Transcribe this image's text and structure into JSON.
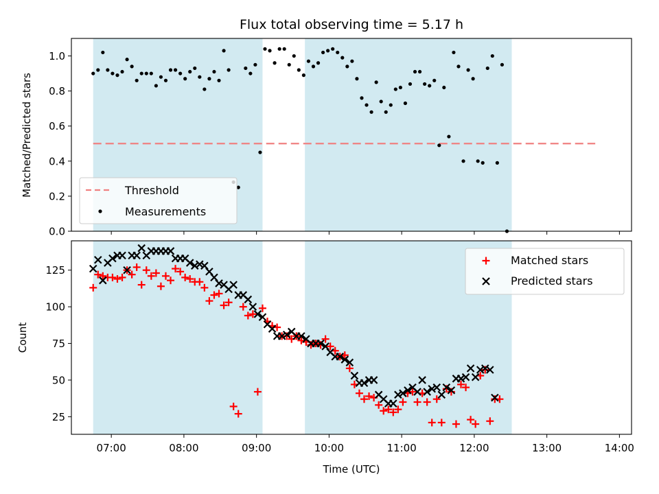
{
  "figure_title": "Flux total observing time = 5.17 h",
  "colors": {
    "threshold": "#f08080",
    "span": "#add8e6",
    "matched": "#ff0000",
    "predicted": "#000000",
    "measurement": "#000000"
  },
  "chart_data": [
    {
      "type": "scatter",
      "title": "Flux total observing time = 5.17 h",
      "xlabel": "",
      "ylabel": "Matched/Predicted stars",
      "xlim": [
        "06:27",
        "14:10"
      ],
      "ylim": [
        0,
        1.1
      ],
      "yticks": [
        "0.0",
        "0.2",
        "0.4",
        "0.6",
        "0.8",
        "1.0"
      ],
      "legend_position": "lower-left",
      "shaded_spans": [
        [
          "06:45",
          "09:05"
        ],
        [
          "09:40",
          "12:31"
        ]
      ],
      "threshold": {
        "label": "Threshold",
        "value": 0.5,
        "x_start": "06:45",
        "x_end": "13:40"
      },
      "series": [
        {
          "name": "Measurements",
          "points": [
            [
              "06:45",
              0.9
            ],
            [
              "06:49",
              0.92
            ],
            [
              "06:53",
              1.02
            ],
            [
              "06:57",
              0.92
            ],
            [
              "07:01",
              0.9
            ],
            [
              "07:05",
              0.89
            ],
            [
              "07:09",
              0.91
            ],
            [
              "07:13",
              0.98
            ],
            [
              "07:17",
              0.94
            ],
            [
              "07:21",
              0.86
            ],
            [
              "07:25",
              0.9
            ],
            [
              "07:29",
              0.9
            ],
            [
              "07:33",
              0.9
            ],
            [
              "07:37",
              0.83
            ],
            [
              "07:41",
              0.88
            ],
            [
              "07:45",
              0.86
            ],
            [
              "07:49",
              0.92
            ],
            [
              "07:53",
              0.92
            ],
            [
              "07:57",
              0.9
            ],
            [
              "08:01",
              0.87
            ],
            [
              "08:05",
              0.91
            ],
            [
              "08:09",
              0.93
            ],
            [
              "08:13",
              0.88
            ],
            [
              "08:17",
              0.81
            ],
            [
              "08:21",
              0.87
            ],
            [
              "08:25",
              0.91
            ],
            [
              "08:29",
              0.86
            ],
            [
              "08:33",
              1.03
            ],
            [
              "08:37",
              0.92
            ],
            [
              "08:41",
              0.28
            ],
            [
              "08:45",
              0.25
            ],
            [
              "08:51",
              0.93
            ],
            [
              "08:55",
              0.9
            ],
            [
              "08:59",
              0.95
            ],
            [
              "09:03",
              0.45
            ],
            [
              "09:07",
              1.04
            ],
            [
              "09:11",
              1.03
            ],
            [
              "09:15",
              0.96
            ],
            [
              "09:19",
              1.04
            ],
            [
              "09:23",
              1.04
            ],
            [
              "09:27",
              0.95
            ],
            [
              "09:31",
              1.0
            ],
            [
              "09:35",
              0.92
            ],
            [
              "09:39",
              0.89
            ],
            [
              "09:43",
              0.97
            ],
            [
              "09:47",
              0.94
            ],
            [
              "09:51",
              0.96
            ],
            [
              "09:55",
              1.02
            ],
            [
              "09:59",
              1.03
            ],
            [
              "10:03",
              1.04
            ],
            [
              "10:07",
              1.02
            ],
            [
              "10:11",
              0.99
            ],
            [
              "10:15",
              0.94
            ],
            [
              "10:19",
              0.97
            ],
            [
              "10:23",
              0.87
            ],
            [
              "10:27",
              0.76
            ],
            [
              "10:31",
              0.72
            ],
            [
              "10:35",
              0.68
            ],
            [
              "10:39",
              0.85
            ],
            [
              "10:43",
              0.74
            ],
            [
              "10:47",
              0.68
            ],
            [
              "10:51",
              0.72
            ],
            [
              "10:55",
              0.81
            ],
            [
              "10:59",
              0.82
            ],
            [
              "11:03",
              0.73
            ],
            [
              "11:07",
              0.84
            ],
            [
              "11:11",
              0.91
            ],
            [
              "11:15",
              0.91
            ],
            [
              "11:19",
              0.84
            ],
            [
              "11:23",
              0.83
            ],
            [
              "11:27",
              0.86
            ],
            [
              "11:31",
              0.49
            ],
            [
              "11:35",
              0.82
            ],
            [
              "11:39",
              0.54
            ],
            [
              "11:43",
              1.02
            ],
            [
              "11:47",
              0.94
            ],
            [
              "11:51",
              0.4
            ],
            [
              "11:55",
              0.92
            ],
            [
              "11:59",
              0.87
            ],
            [
              "12:03",
              0.4
            ],
            [
              "12:07",
              0.39
            ],
            [
              "12:11",
              0.93
            ],
            [
              "12:15",
              1.0
            ],
            [
              "12:19",
              0.39
            ],
            [
              "12:23",
              0.95
            ],
            [
              "12:27",
              0.0
            ]
          ]
        }
      ]
    },
    {
      "type": "scatter",
      "xlabel": "Time (UTC)",
      "ylabel": "Count",
      "xlim": [
        "06:27",
        "14:10"
      ],
      "xticks": [
        "07:00",
        "08:00",
        "09:00",
        "10:00",
        "11:00",
        "12:00",
        "13:00",
        "14:00"
      ],
      "ylim": [
        13,
        145
      ],
      "yticks": [
        "25",
        "50",
        "75",
        "100",
        "125"
      ],
      "legend_position": "upper-right",
      "shaded_spans": [
        [
          "06:45",
          "09:05"
        ],
        [
          "09:40",
          "12:31"
        ]
      ],
      "series": [
        {
          "name": "Matched stars",
          "marker": "plus",
          "points": [
            [
              "06:45",
              113
            ],
            [
              "06:49",
              122
            ],
            [
              "06:53",
              121
            ],
            [
              "06:57",
              120
            ],
            [
              "07:01",
              120
            ],
            [
              "07:05",
              119
            ],
            [
              "07:09",
              120
            ],
            [
              "07:13",
              125
            ],
            [
              "07:17",
              122
            ],
            [
              "07:21",
              127
            ],
            [
              "07:25",
              115
            ],
            [
              "07:29",
              125
            ],
            [
              "07:33",
              121
            ],
            [
              "07:37",
              123
            ],
            [
              "07:41",
              114
            ],
            [
              "07:45",
              121
            ],
            [
              "07:49",
              118
            ],
            [
              "07:53",
              126
            ],
            [
              "07:57",
              124
            ],
            [
              "08:01",
              120
            ],
            [
              "08:05",
              119
            ],
            [
              "08:09",
              117
            ],
            [
              "08:13",
              117
            ],
            [
              "08:17",
              113
            ],
            [
              "08:21",
              104
            ],
            [
              "08:25",
              108
            ],
            [
              "08:29",
              109
            ],
            [
              "08:33",
              101
            ],
            [
              "08:37",
              103
            ],
            [
              "08:41",
              32
            ],
            [
              "08:45",
              27
            ],
            [
              "08:49",
              100
            ],
            [
              "08:53",
              94
            ],
            [
              "08:57",
              95
            ],
            [
              "09:01",
              42
            ],
            [
              "09:05",
              99
            ],
            [
              "09:09",
              90
            ],
            [
              "09:13",
              87
            ],
            [
              "09:17",
              86
            ],
            [
              "09:21",
              80
            ],
            [
              "09:25",
              80
            ],
            [
              "09:29",
              78
            ],
            [
              "09:33",
              80
            ],
            [
              "09:37",
              77
            ],
            [
              "09:41",
              76
            ],
            [
              "09:45",
              74
            ],
            [
              "09:49",
              75
            ],
            [
              "09:53",
              74
            ],
            [
              "09:57",
              78
            ],
            [
              "10:01",
              73
            ],
            [
              "10:05",
              70
            ],
            [
              "10:09",
              66
            ],
            [
              "10:13",
              67
            ],
            [
              "10:17",
              58
            ],
            [
              "10:21",
              47
            ],
            [
              "10:25",
              41
            ],
            [
              "10:29",
              37
            ],
            [
              "10:33",
              39
            ],
            [
              "10:37",
              38
            ],
            [
              "10:41",
              33
            ],
            [
              "10:45",
              29
            ],
            [
              "10:49",
              30
            ],
            [
              "10:53",
              28
            ],
            [
              "10:57",
              30
            ],
            [
              "11:01",
              35
            ],
            [
              "11:05",
              41
            ],
            [
              "11:09",
              42
            ],
            [
              "11:13",
              35
            ],
            [
              "11:17",
              41
            ],
            [
              "11:21",
              35
            ],
            [
              "11:25",
              21
            ],
            [
              "11:29",
              37
            ],
            [
              "11:33",
              21
            ],
            [
              "11:37",
              44
            ],
            [
              "11:41",
              42
            ],
            [
              "11:45",
              20
            ],
            [
              "11:49",
              47
            ],
            [
              "11:53",
              45
            ],
            [
              "11:57",
              23
            ],
            [
              "12:01",
              20
            ],
            [
              "12:05",
              53
            ],
            [
              "12:09",
              57
            ],
            [
              "12:13",
              22
            ],
            [
              "12:17",
              37
            ],
            [
              "12:21",
              37
            ]
          ]
        },
        {
          "name": "Predicted stars",
          "marker": "x",
          "points": [
            [
              "06:45",
              126
            ],
            [
              "06:49",
              132
            ],
            [
              "06:53",
              118
            ],
            [
              "06:57",
              130
            ],
            [
              "07:01",
              133
            ],
            [
              "07:05",
              135
            ],
            [
              "07:09",
              135
            ],
            [
              "07:13",
              125
            ],
            [
              "07:17",
              135
            ],
            [
              "07:21",
              135
            ],
            [
              "07:25",
              140
            ],
            [
              "07:29",
              135
            ],
            [
              "07:33",
              138
            ],
            [
              "07:37",
              138
            ],
            [
              "07:41",
              138
            ],
            [
              "07:45",
              138
            ],
            [
              "07:49",
              138
            ],
            [
              "07:53",
              133
            ],
            [
              "07:57",
              133
            ],
            [
              "08:01",
              133
            ],
            [
              "08:05",
              130
            ],
            [
              "08:09",
              128
            ],
            [
              "08:13",
              129
            ],
            [
              "08:17",
              128
            ],
            [
              "08:21",
              124
            ],
            [
              "08:25",
              120
            ],
            [
              "08:29",
              116
            ],
            [
              "08:33",
              115
            ],
            [
              "08:37",
              112
            ],
            [
              "08:41",
              115
            ],
            [
              "08:45",
              108
            ],
            [
              "08:49",
              108
            ],
            [
              "08:53",
              105
            ],
            [
              "08:57",
              100
            ],
            [
              "09:01",
              95
            ],
            [
              "09:05",
              93
            ],
            [
              "09:09",
              88
            ],
            [
              "09:13",
              85
            ],
            [
              "09:17",
              80
            ],
            [
              "09:21",
              80
            ],
            [
              "09:25",
              81
            ],
            [
              "09:29",
              83
            ],
            [
              "09:33",
              80
            ],
            [
              "09:37",
              80
            ],
            [
              "09:41",
              78
            ],
            [
              "09:45",
              75
            ],
            [
              "09:49",
              75
            ],
            [
              "09:53",
              75
            ],
            [
              "09:57",
              73
            ],
            [
              "10:01",
              69
            ],
            [
              "10:05",
              66
            ],
            [
              "10:09",
              66
            ],
            [
              "10:13",
              64
            ],
            [
              "10:17",
              62
            ],
            [
              "10:21",
              53
            ],
            [
              "10:25",
              48
            ],
            [
              "10:29",
              48
            ],
            [
              "10:33",
              50
            ],
            [
              "10:37",
              50
            ],
            [
              "10:41",
              40
            ],
            [
              "10:45",
              37
            ],
            [
              "10:49",
              34
            ],
            [
              "10:53",
              34
            ],
            [
              "10:57",
              40
            ],
            [
              "11:01",
              41
            ],
            [
              "11:05",
              43
            ],
            [
              "11:09",
              45
            ],
            [
              "11:13",
              42
            ],
            [
              "11:17",
              50
            ],
            [
              "11:21",
              42
            ],
            [
              "11:25",
              44
            ],
            [
              "11:29",
              45
            ],
            [
              "11:33",
              40
            ],
            [
              "11:37",
              45
            ],
            [
              "11:41",
              43
            ],
            [
              "11:45",
              51
            ],
            [
              "11:49",
              51
            ],
            [
              "11:53",
              52
            ],
            [
              "11:57",
              58
            ],
            [
              "12:01",
              52
            ],
            [
              "12:05",
              57
            ],
            [
              "12:09",
              58
            ],
            [
              "12:13",
              57
            ],
            [
              "12:17",
              38
            ]
          ]
        }
      ]
    }
  ]
}
